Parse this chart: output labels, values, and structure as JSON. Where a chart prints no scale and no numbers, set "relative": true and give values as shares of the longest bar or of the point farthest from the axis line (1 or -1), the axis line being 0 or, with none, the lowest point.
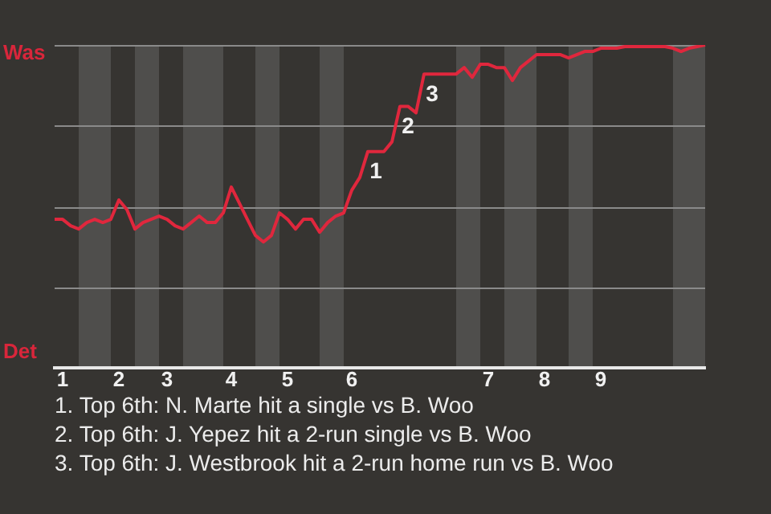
{
  "chart_data": {
    "type": "line",
    "categories": [
      null,
      "1",
      null,
      null,
      null,
      null,
      null,
      null,
      "2",
      null,
      null,
      null,
      null,
      null,
      "3",
      null,
      null,
      null,
      null,
      null,
      null,
      null,
      "4",
      null,
      null,
      null,
      null,
      null,
      null,
      "5",
      null,
      null,
      null,
      null,
      null,
      null,
      null,
      "6",
      null,
      null,
      null,
      null,
      null,
      null,
      null,
      null,
      null,
      null,
      null,
      null,
      null,
      null,
      null,
      null,
      "7",
      null,
      null,
      null,
      null,
      null,
      null,
      "8",
      null,
      null,
      null,
      null,
      null,
      null,
      "9",
      null,
      null,
      null,
      null,
      null,
      null,
      null,
      null,
      null,
      null,
      null,
      null,
      null
    ],
    "relative": true,
    "series": [
      {
        "color": "#e0273d",
        "values": [
          0.46,
          0.46,
          0.44,
          0.43,
          0.45,
          0.46,
          0.45,
          0.46,
          0.52,
          0.49,
          0.43,
          0.45,
          0.46,
          0.47,
          0.46,
          0.44,
          0.43,
          0.45,
          0.47,
          0.45,
          0.45,
          0.48,
          0.56,
          0.51,
          0.46,
          0.41,
          0.39,
          0.41,
          0.48,
          0.46,
          0.43,
          0.46,
          0.46,
          0.42,
          0.45,
          0.47,
          0.48,
          0.55,
          0.59,
          0.67,
          0.67,
          0.67,
          0.7,
          0.81,
          0.81,
          0.79,
          0.91,
          0.91,
          0.91,
          0.91,
          0.91,
          0.93,
          0.9,
          0.94,
          0.94,
          0.93,
          0.93,
          0.89,
          0.93,
          0.95,
          0.97,
          0.97,
          0.97,
          0.97,
          0.96,
          0.97,
          0.98,
          0.98,
          0.99,
          0.99,
          0.99,
          0.995,
          0.995,
          0.995,
          0.995,
          0.995,
          0.995,
          0.99,
          0.98,
          0.99,
          0.995,
          1
        ]
      }
    ],
    "grid": "y",
    "legend": false,
    "marker": "none",
    "line_style": "solid",
    "annotations": [
      "Was",
      "Det",
      {
        "text": "1",
        "y": 0.67
      },
      {
        "text": "2",
        "y": 0.81
      },
      {
        "text": "3",
        "y": 0.91
      },
      "1. Top 6th: N. Marte hit a single vs B. Woo",
      "2. Top 6th: J. Yepez hit a 2-run single vs B. Woo",
      "3. Top 6th: J. Westbrook hit a 2-run home run vs B. Woo"
    ]
  }
}
